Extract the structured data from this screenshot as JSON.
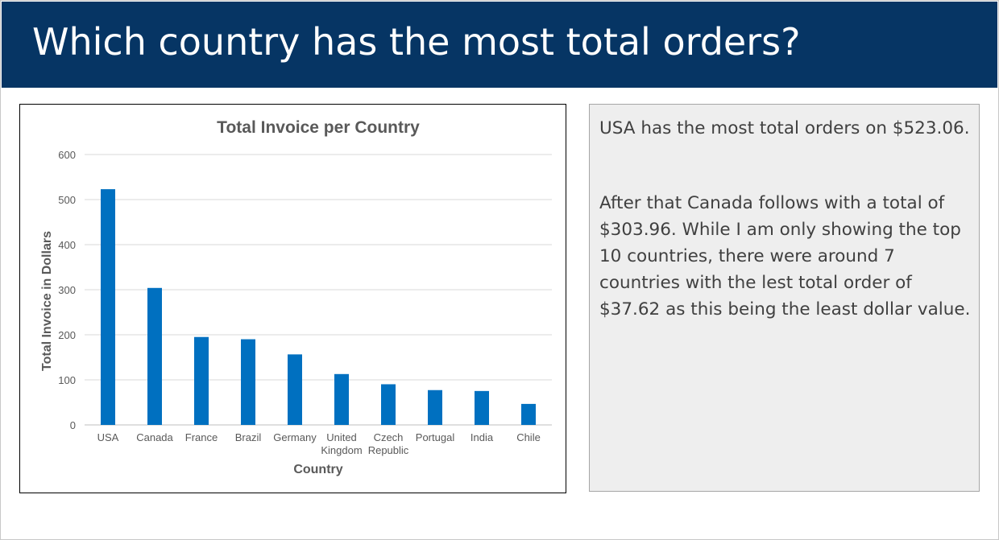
{
  "slide": {
    "title": "Which country has the most total orders?",
    "accent_color": "#063564",
    "note_paragraph_1": "USA has the most total orders on $523.06.",
    "note_paragraph_2": "After that Canada follows with a total of $303.96. While I am only showing the top 10 countries, there were around 7 countries with the lest total order of $37.62 as this being the least dollar value."
  },
  "chart_data": {
    "type": "bar",
    "title": "Total Invoice per Country",
    "xlabel": "Country",
    "ylabel": "Total Invoice in Dollars",
    "categories": [
      "USA",
      "Canada",
      "France",
      "Brazil",
      "Germany",
      "United Kingdom",
      "Czech Republic",
      "Portugal",
      "India",
      "Chile"
    ],
    "values": [
      523.06,
      303.96,
      195.1,
      190.1,
      156.48,
      112.86,
      90.24,
      77.24,
      75.26,
      46.62
    ],
    "ylim": [
      0,
      600
    ],
    "yticks": [
      0,
      100,
      200,
      300,
      400,
      500,
      600
    ],
    "grid": true,
    "bar_color": "#0070c0"
  }
}
